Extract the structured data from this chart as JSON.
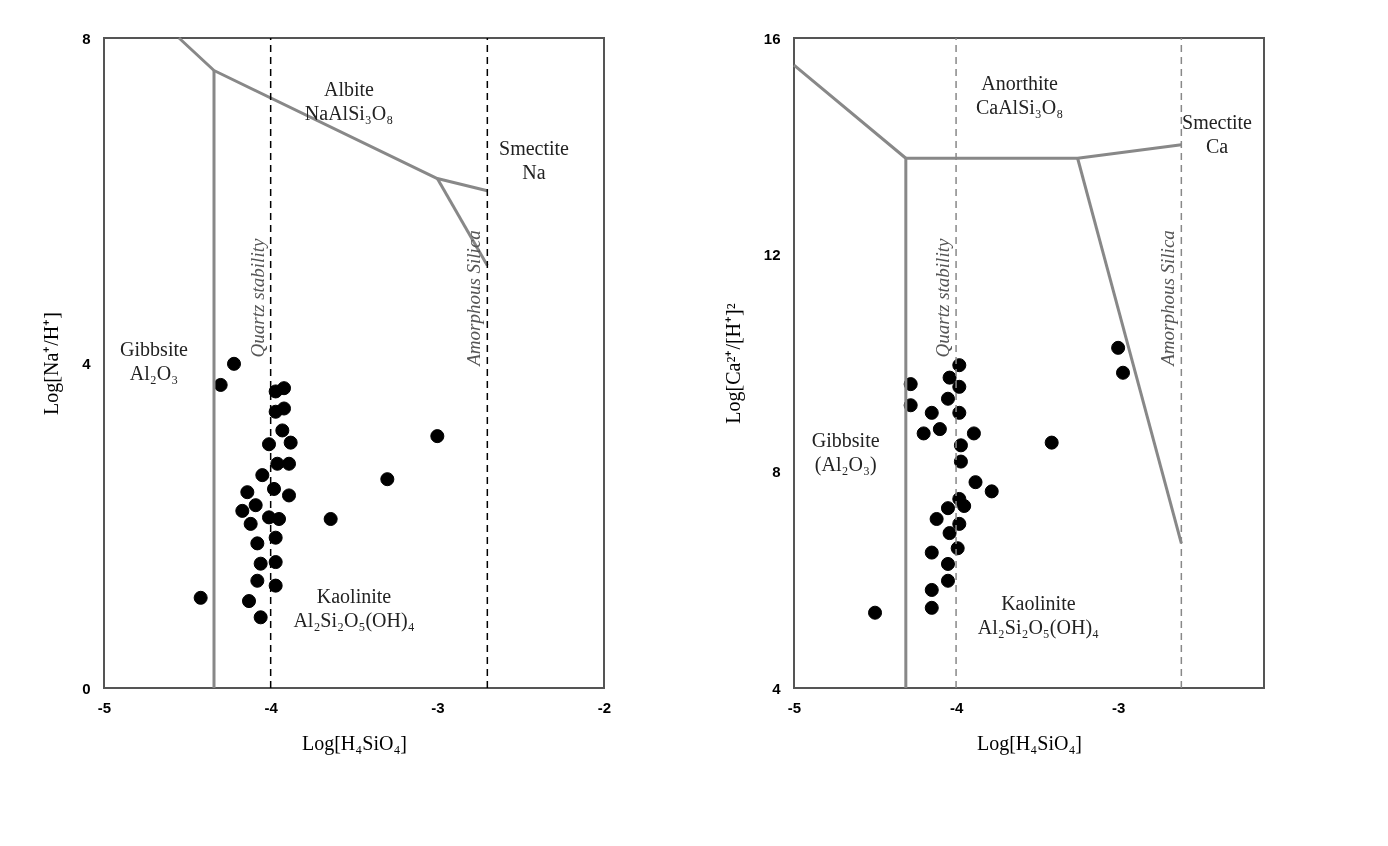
{
  "chart_data": [
    {
      "type": "scatter",
      "xlabel": "Log[H₄SiO₄]",
      "ylabel": "Log[Na⁺/H⁺]",
      "xlim": [
        -5,
        -2
      ],
      "ylim": [
        0,
        8
      ],
      "xticks": [
        -5,
        -4,
        -3,
        -2
      ],
      "yticks": [
        0,
        4,
        8
      ],
      "series": [
        {
          "type": "scatter",
          "marker": "circle",
          "color": "#000000",
          "x": [
            -4.3,
            -4.22,
            -4.42,
            -3.3,
            -3.0,
            -3.64,
            -3.97,
            -3.92,
            -3.97,
            -3.92,
            -3.93,
            -4.01,
            -3.88,
            -3.96,
            -3.89,
            -4.05,
            -3.98,
            -3.89,
            -4.14,
            -4.17,
            -4.09,
            -4.12,
            -4.01,
            -3.95,
            -3.97,
            -4.08,
            -4.06,
            -3.97,
            -4.08,
            -3.97,
            -4.13,
            -4.06
          ],
          "values": [
            3.73,
            3.99,
            1.11,
            2.57,
            3.1,
            2.08,
            3.65,
            3.69,
            3.4,
            3.44,
            3.17,
            3.0,
            3.02,
            2.76,
            2.76,
            2.62,
            2.45,
            2.37,
            2.41,
            2.18,
            2.25,
            2.02,
            2.1,
            2.08,
            1.85,
            1.78,
            1.53,
            1.55,
            1.32,
            1.26,
            1.07,
            0.87
          ]
        },
        {
          "type": "line",
          "color": "#888888",
          "x": [
            -4.34,
            -4.34
          ],
          "values": [
            0,
            7.6
          ]
        },
        {
          "type": "line",
          "color": "#888888",
          "x": [
            -4.55,
            -4.34,
            -3.0,
            -2.7
          ],
          "values": [
            8,
            7.6,
            6.27,
            6.12
          ]
        },
        {
          "type": "line",
          "color": "#888888",
          "x": [
            -3.0,
            -2.7
          ],
          "values": [
            6.27,
            5.2
          ]
        }
      ],
      "ref_lines": [
        {
          "axis": "x",
          "value": -4,
          "label": "Quartz stability",
          "line_style": "dashed",
          "color": "#000000"
        },
        {
          "axis": "x",
          "value": -2.7,
          "label": "Amorphous Silica",
          "line_style": "dashed",
          "color": "#000000"
        }
      ],
      "annotations": [
        "Albite\nNaAlSi₃O₈",
        "Smectite\nNa",
        "Gibbsite\nAl₂O₃",
        "Kaolinite\nAl₂Si₂O₅(OH)₄"
      ]
    },
    {
      "type": "scatter",
      "xlabel": "Log[H₄SiO₄]",
      "ylabel": "Log[Ca²⁺/[H⁺]²",
      "xlim": [
        -5,
        -2.1
      ],
      "ylim": [
        4,
        16
      ],
      "xticks": [
        -5,
        -4,
        -3
      ],
      "yticks": [
        4,
        8,
        12,
        16
      ],
      "series": [
        {
          "type": "scatter",
          "marker": "circle",
          "color": "#000000",
          "x": [
            -4.5,
            -3.41,
            -3.0,
            -2.97,
            -4.28,
            -4.28,
            -4.15,
            -4.2,
            -4.1,
            -3.98,
            -4.04,
            -3.98,
            -4.05,
            -3.98,
            -3.89,
            -3.97,
            -3.97,
            -3.88,
            -3.78,
            -3.98,
            -4.05,
            -3.95,
            -4.12,
            -3.98,
            -4.04,
            -3.99,
            -4.15,
            -4.05,
            -4.05,
            -4.15,
            -4.15
          ],
          "values": [
            5.39,
            8.53,
            10.28,
            9.82,
            9.61,
            9.22,
            9.08,
            8.7,
            8.78,
            9.96,
            9.73,
            9.56,
            9.34,
            9.08,
            8.7,
            8.48,
            8.18,
            7.8,
            7.63,
            7.49,
            7.32,
            7.36,
            7.12,
            7.03,
            6.86,
            6.58,
            6.5,
            6.29,
            5.98,
            5.81,
            5.48
          ]
        },
        {
          "type": "line",
          "color": "#888888",
          "x": [
            -5,
            -4.31,
            -4.31
          ],
          "values": [
            15.5,
            13.78,
            4
          ]
        },
        {
          "type": "line",
          "color": "#888888",
          "x": [
            -4.31,
            -3.25,
            -2.61
          ],
          "values": [
            13.78,
            13.78,
            14.03
          ]
        },
        {
          "type": "line",
          "color": "#888888",
          "x": [
            -3.25,
            -2.61
          ],
          "values": [
            13.78,
            6.67
          ]
        }
      ],
      "ref_lines": [
        {
          "axis": "x",
          "value": -4,
          "label": "Quartz stability",
          "line_style": "dashed",
          "color": "#888888"
        },
        {
          "axis": "x",
          "value": -2.61,
          "label": "Amorphous Silica",
          "line_style": "dashed",
          "color": "#888888"
        }
      ],
      "annotations": [
        "Anorthite\nCaAlSi₃O₈",
        "Smectite\nCa",
        "Gibbsite\n(Al₂O₃)",
        "Kaolinite\nAl₂Si₂O₅(OH)₄"
      ]
    }
  ]
}
